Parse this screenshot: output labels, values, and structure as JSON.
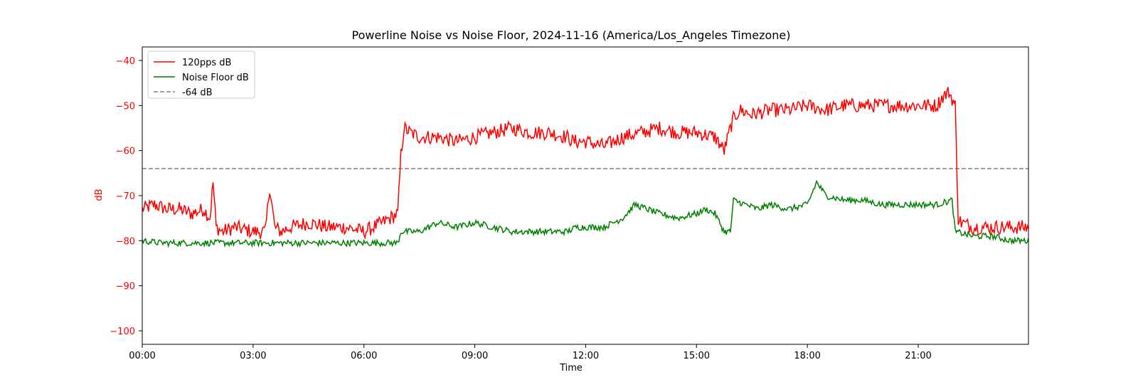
{
  "colors": {
    "series_120pps": "#ff0000",
    "series_noise_floor": "#008000",
    "threshold": "#808080",
    "axis": "#000000",
    "y_axis_text": "#ff0000"
  },
  "chart_data": {
    "type": "line",
    "title": "Powerline Noise vs Noise Floor, 2024-11-16 (America/Los_Angeles Timezone)",
    "xlabel": "Time",
    "ylabel": "dB",
    "x_unit": "time of day",
    "xlim": [
      "00:00",
      "23:59"
    ],
    "ylim": [
      -103,
      -37
    ],
    "x_ticks": [
      "00:00",
      "03:00",
      "06:00",
      "09:00",
      "12:00",
      "15:00",
      "18:00",
      "21:00"
    ],
    "y_ticks": [
      -40,
      -50,
      -60,
      -70,
      -80,
      -90,
      -100
    ],
    "grid": false,
    "legend_position": "top-left",
    "series": [
      {
        "name": "120pps dB",
        "style": "solid",
        "x": [
          "00:00",
          "00:20",
          "00:40",
          "01:00",
          "01:20",
          "01:40",
          "01:50",
          "01:55",
          "02:00",
          "02:10",
          "02:30",
          "03:00",
          "03:20",
          "03:27",
          "03:35",
          "03:45",
          "04:00",
          "04:30",
          "05:00",
          "05:30",
          "06:00",
          "06:30",
          "06:55",
          "07:00",
          "07:05",
          "07:15",
          "07:30",
          "08:00",
          "08:30",
          "09:00",
          "09:30",
          "10:00",
          "10:30",
          "11:00",
          "11:30",
          "11:40",
          "12:00",
          "12:30",
          "12:45",
          "13:00",
          "13:30",
          "14:00",
          "14:30",
          "15:00",
          "15:30",
          "15:45",
          "15:55",
          "16:00",
          "16:10",
          "16:30",
          "17:00",
          "17:30",
          "18:00",
          "18:30",
          "19:00",
          "19:30",
          "20:00",
          "20:30",
          "21:00",
          "21:30",
          "21:40",
          "21:50",
          "22:00",
          "22:05",
          "22:10",
          "22:30",
          "23:00",
          "23:30",
          "23:59"
        ],
        "y": [
          -73,
          -72,
          -73,
          -73,
          -74,
          -73,
          -75,
          -67,
          -77,
          -78,
          -77,
          -78,
          -78,
          -68,
          -77,
          -78,
          -77,
          -76,
          -77,
          -77,
          -78,
          -76,
          -74,
          -61,
          -55,
          -56,
          -57,
          -57,
          -58,
          -57,
          -56,
          -55,
          -56,
          -56,
          -57,
          -58,
          -58,
          -59,
          -58,
          -57,
          -56,
          -55,
          -56,
          -56,
          -57,
          -60,
          -55,
          -53,
          -51,
          -52,
          -51,
          -51,
          -50,
          -51,
          -50,
          -50,
          -50,
          -50,
          -50,
          -50,
          -48,
          -47,
          -50,
          -75,
          -76,
          -77,
          -77,
          -77,
          -77
        ]
      },
      {
        "name": "Noise Floor dB",
        "style": "solid",
        "x": [
          "00:00",
          "00:30",
          "01:00",
          "01:30",
          "02:00",
          "02:30",
          "03:00",
          "03:30",
          "04:00",
          "04:30",
          "05:00",
          "05:30",
          "06:00",
          "06:30",
          "06:55",
          "07:00",
          "07:05",
          "07:30",
          "08:00",
          "08:30",
          "09:00",
          "09:30",
          "10:00",
          "10:30",
          "11:00",
          "11:30",
          "11:45",
          "12:00",
          "12:30",
          "13:00",
          "13:20",
          "13:40",
          "14:00",
          "14:30",
          "15:00",
          "15:15",
          "15:30",
          "15:45",
          "15:55",
          "16:00",
          "16:20",
          "16:40",
          "17:00",
          "17:30",
          "18:00",
          "18:15",
          "18:30",
          "19:00",
          "19:30",
          "20:00",
          "20:30",
          "21:00",
          "21:30",
          "21:55",
          "22:00",
          "22:30",
          "23:00",
          "23:30",
          "23:59"
        ],
        "y": [
          -80,
          -80.5,
          -80.5,
          -80.5,
          -80.5,
          -80.5,
          -80.5,
          -80.5,
          -80.5,
          -80.5,
          -80.5,
          -80.5,
          -80.5,
          -80.5,
          -80.5,
          -78,
          -78,
          -78,
          -76,
          -77,
          -76,
          -77,
          -78,
          -78,
          -78,
          -78,
          -77,
          -77,
          -77,
          -75,
          -72,
          -73,
          -74,
          -75,
          -74,
          -73,
          -74,
          -78,
          -78,
          -71,
          -72,
          -73,
          -72,
          -73,
          -72,
          -67,
          -70,
          -71,
          -71,
          -72,
          -72,
          -72,
          -72,
          -71,
          -78,
          -79,
          -79,
          -80,
          -80
        ]
      }
    ],
    "reference_lines": [
      {
        "name": "-64 dB",
        "y": -64,
        "style": "dashed"
      }
    ]
  }
}
